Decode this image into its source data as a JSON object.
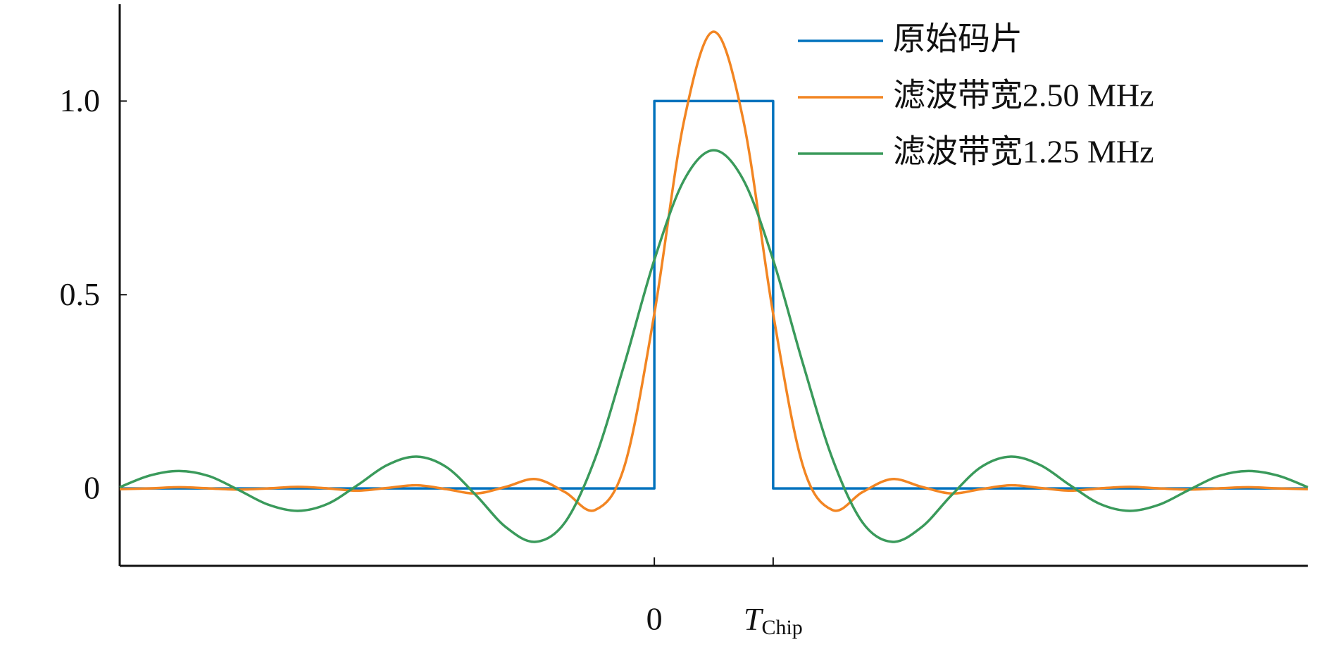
{
  "chart_data": {
    "type": "line",
    "legend": "upper right",
    "grid": false,
    "xlim": [
      -4.5,
      5.5
    ],
    "ylim": [
      -0.2,
      1.25
    ],
    "xticks": [
      0,
      {
        "value": 1,
        "label": "T",
        "subscript": "Chip"
      }
    ],
    "yticks": [
      0,
      0.5,
      {
        "value": 1,
        "label": "1.0"
      }
    ],
    "x": [
      -4.5,
      -4.25,
      -4,
      -3.75,
      -3.5,
      -3.25,
      -3,
      -2.75,
      -2.5,
      -2.25,
      -2,
      -1.75,
      -1.5,
      -1.25,
      -1,
      -0.75,
      -0.5,
      -0.25,
      0,
      0.25,
      0.5,
      0.75,
      1,
      1.25,
      1.5,
      1.75,
      2,
      2.25,
      2.5,
      2.75,
      3,
      3.25,
      3.5,
      3.75,
      4,
      4.25,
      4.5,
      4.75,
      5,
      5.25,
      5.5
    ],
    "series": [
      {
        "name": "原始码片",
        "color": "#0072BD",
        "x": [
          -4.5,
          0,
          0,
          1,
          1,
          5.5
        ],
        "values": [
          0,
          0,
          1,
          1,
          0,
          0
        ]
      },
      {
        "name": "滤波带宽2.50 MHz",
        "color": "#F28522",
        "values": [
          -0.002,
          0,
          0.003,
          0,
          -0.003,
          0,
          0.004,
          0,
          -0.006,
          0.001,
          0.008,
          -0.002,
          -0.013,
          0.004,
          0.024,
          -0.01,
          -0.056,
          0.059,
          0.451,
          0.949,
          1.179,
          0.949,
          0.451,
          0.059,
          -0.056,
          -0.01,
          0.024,
          0.004,
          -0.013,
          -0.002,
          0.008,
          0.001,
          -0.006,
          0,
          0.004,
          0,
          -0.003,
          0,
          0.003,
          0,
          -0.002
        ]
      },
      {
        "name": "滤波带宽1.25 MHz",
        "color": "#3A9A5B",
        "values": [
          0.003,
          0.033,
          0.045,
          0.032,
          -0.004,
          -0.042,
          -0.058,
          -0.04,
          0.008,
          0.06,
          0.082,
          0.055,
          -0.018,
          -0.1,
          -0.138,
          -0.087,
          0.076,
          0.323,
          0.59,
          0.796,
          0.873,
          0.796,
          0.59,
          0.323,
          0.076,
          -0.087,
          -0.138,
          -0.1,
          -0.018,
          0.055,
          0.082,
          0.06,
          0.008,
          -0.04,
          -0.058,
          -0.042,
          -0.004,
          0.032,
          0.045,
          0.033,
          0.003
        ]
      }
    ]
  }
}
